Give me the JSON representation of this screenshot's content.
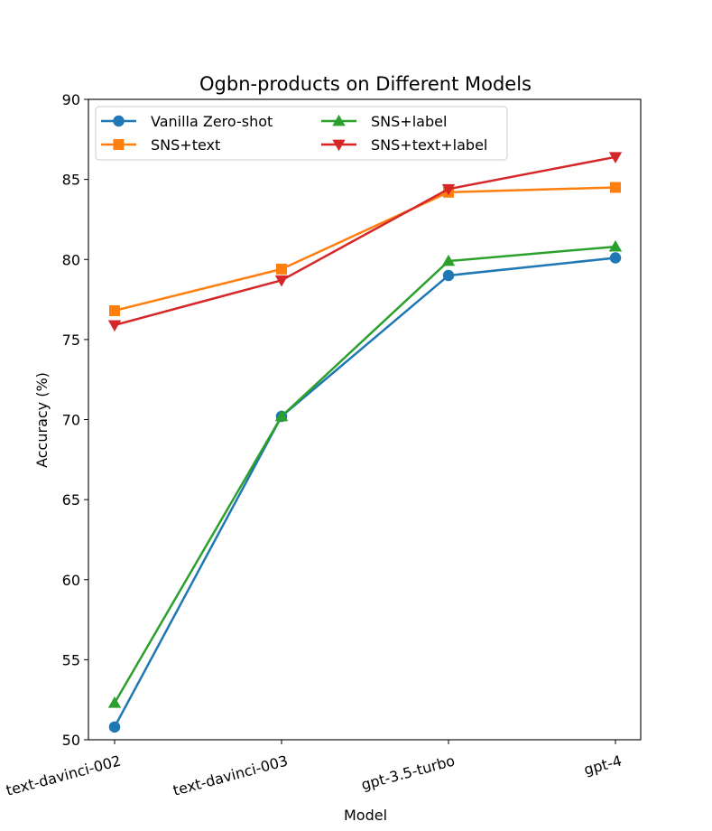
{
  "chart_data": {
    "type": "line",
    "title": "Ogbn-products on Different Models",
    "xlabel": "Model",
    "ylabel": "Accuracy (%)",
    "categories": [
      "text-davinci-002",
      "text-davinci-003",
      "gpt-3.5-turbo",
      "gpt-4"
    ],
    "ylim": [
      50,
      90
    ],
    "yticks": [
      50,
      55,
      60,
      65,
      70,
      75,
      80,
      85,
      90
    ],
    "grid": false,
    "legend_position": "top-left",
    "series": [
      {
        "name": "Vanilla Zero-shot",
        "color": "#1f77b4",
        "marker": "circle",
        "values": [
          50.8,
          70.2,
          79.0,
          80.1
        ]
      },
      {
        "name": "SNS+text",
        "color": "#ff7f0e",
        "marker": "square",
        "values": [
          76.8,
          79.4,
          84.2,
          84.5
        ]
      },
      {
        "name": "SNS+label",
        "color": "#2ca02c",
        "marker": "triangle-up",
        "values": [
          52.3,
          70.2,
          79.9,
          80.8
        ]
      },
      {
        "name": "SNS+text+label",
        "color": "#d62728",
        "marker": "triangle-down",
        "values": [
          75.9,
          78.7,
          84.4,
          86.4
        ]
      }
    ]
  }
}
